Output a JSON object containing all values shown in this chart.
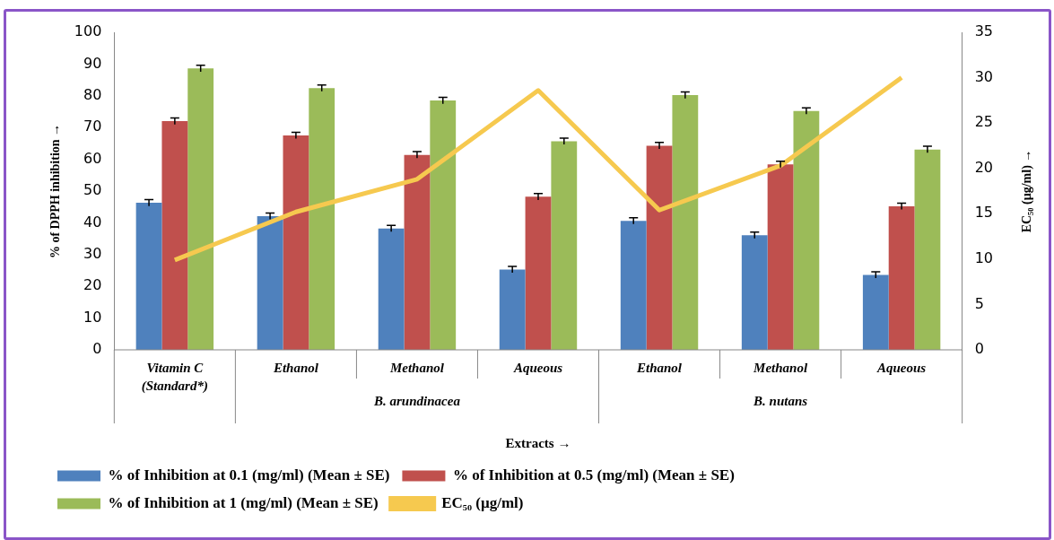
{
  "chart_data": {
    "type": "bar",
    "xlabel": "Extracts →",
    "ylabel": "% of DPPH inhibition →",
    "y2label": "EC₅₀ (µg/ml) →",
    "categories": [
      "Vitamin C (Standard*)",
      "Ethanol",
      "Methanol",
      "Aqueous",
      "Ethanol",
      "Methanol",
      "Aqueous"
    ],
    "annotations": [
      "B. arundinacea",
      "B. nutans"
    ],
    "series": [
      {
        "name": "% of Inhibition at 0.1 (mg/ml) (Mean ± SE)",
        "color": "#4f81bd",
        "values": [
          46.3,
          42.1,
          38.2,
          25.3,
          40.6,
          36.1,
          23.6
        ],
        "errors": [
          1,
          1,
          1,
          1,
          1,
          1,
          1
        ]
      },
      {
        "name": "% of Inhibition at 0.5 (mg/ml) (Mean ± SE)",
        "color": "#c0504d",
        "values": [
          72.0,
          67.5,
          61.4,
          48.2,
          64.3,
          58.4,
          45.2
        ],
        "errors": [
          1,
          1,
          1,
          1,
          1,
          1,
          1
        ]
      },
      {
        "name": "% of Inhibition at 1 (mg/ml) (Mean ± SE)",
        "color": "#9bbb59",
        "values": [
          88.6,
          82.4,
          78.5,
          65.7,
          80.2,
          75.2,
          63.1
        ],
        "errors": [
          1,
          1,
          1,
          1,
          1,
          1,
          1
        ]
      },
      {
        "name": "EC₅₀ (µg/ml)",
        "type": "line",
        "axis": "y2",
        "color": "#f6c94f",
        "values": [
          9.9,
          15.2,
          18.8,
          28.6,
          15.4,
          20.3,
          30.0
        ]
      }
    ],
    "ylim": [
      0,
      100
    ],
    "yticks": [
      0,
      10,
      20,
      30,
      40,
      50,
      60,
      70,
      80,
      90,
      100
    ],
    "y2lim": [
      0,
      35
    ],
    "y2ticks": [
      0,
      5,
      10,
      15,
      20,
      25,
      30,
      35
    ],
    "grid": false,
    "legend": "bottom",
    "marker": "none",
    "line_style": "solid"
  }
}
